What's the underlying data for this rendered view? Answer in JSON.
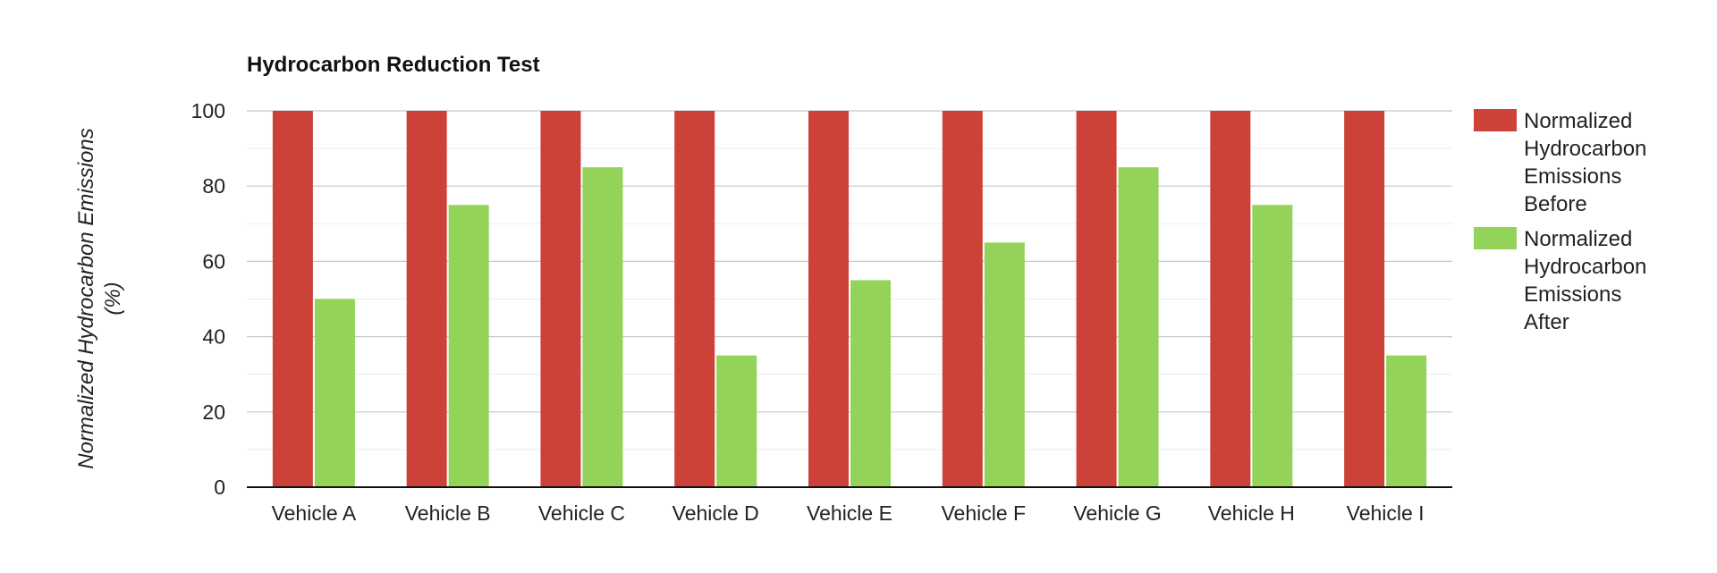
{
  "chart_data": {
    "type": "bar",
    "title": "Hydrocarbon Reduction Test",
    "xlabel": "",
    "ylabel": "Normalized Hydrocarbon Emissions (%)",
    "ylabel_lines": [
      "Normalized Hydrocarbon Emissions",
      "(%)"
    ],
    "categories": [
      "Vehicle A",
      "Vehicle B",
      "Vehicle C",
      "Vehicle D",
      "Vehicle E",
      "Vehicle F",
      "Vehicle G",
      "Vehicle H",
      "Vehicle I"
    ],
    "series": [
      {
        "name": "Normalized Hydrocarbon Emissions Before",
        "legend_lines": [
          "Normalized",
          "Hydrocarbon",
          "Emissions",
          "Before"
        ],
        "color": "#cc4238",
        "values": [
          100,
          100,
          100,
          100,
          100,
          100,
          100,
          100,
          100
        ]
      },
      {
        "name": "Normalized Hydrocarbon Emissions After",
        "legend_lines": [
          "Normalized",
          "Hydrocarbon",
          "Emissions",
          "After"
        ],
        "color": "#93d35a",
        "values": [
          50,
          75,
          85,
          35,
          55,
          65,
          85,
          75,
          35
        ]
      }
    ],
    "ylim": [
      0,
      100
    ],
    "yticks": [
      0,
      20,
      40,
      60,
      80,
      100
    ],
    "grid": true,
    "legend_position": "right"
  }
}
